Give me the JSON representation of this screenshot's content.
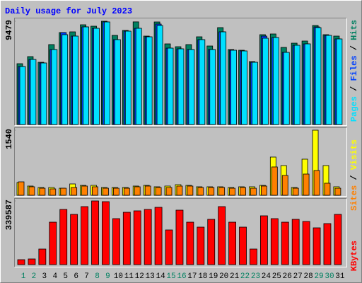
{
  "chart_data": [
    {
      "type": "bar",
      "title": "Daily usage for July 2023",
      "ylim": [
        0,
        9479
      ],
      "yticks": [
        9479
      ],
      "legend_separator": " / ",
      "series": [
        {
          "name": "Hits",
          "color": "#008060",
          "values": [
            5583,
            6232,
            5713,
            7336,
            8440,
            8505,
            9154,
            9024,
            9479,
            8180,
            8635,
            9420,
            8115,
            9413,
            7401,
            7141,
            7336,
            8050,
            7206,
            8894,
            6882,
            6817,
            5778,
            8245,
            8310,
            7076,
            7466,
            7661,
            9089,
            8245,
            8115
          ]
        },
        {
          "name": "Files",
          "color": "#0040ff",
          "values": [
            5324,
            5973,
            5648,
            6882,
            8440,
            8115,
            8959,
            8829,
            9413,
            7790,
            8569,
            8829,
            8050,
            9219,
            7011,
            6946,
            6882,
            7790,
            6882,
            8505,
            6817,
            6752,
            5713,
            8115,
            7985,
            6622,
            7271,
            7401,
            8959,
            8180,
            7855
          ]
        },
        {
          "name": "Pages",
          "color": "#00e0ff",
          "values": [
            5324,
            5973,
            5648,
            6882,
            8245,
            8115,
            8959,
            8829,
            9413,
            7790,
            8569,
            8829,
            8050,
            9089,
            7011,
            6946,
            6882,
            7790,
            6882,
            8505,
            6817,
            6752,
            5713,
            7920,
            7985,
            6622,
            7271,
            7401,
            8894,
            8180,
            7855
          ]
        }
      ]
    },
    {
      "type": "bar",
      "ylim": [
        0,
        1540
      ],
      "yticks": [
        1540
      ],
      "legend_separator": " / ",
      "series": [
        {
          "name": "Visits",
          "color": "#ffff00",
          "values": [
            301,
            218,
            184,
            184,
            167,
            268,
            234,
            234,
            184,
            184,
            184,
            218,
            234,
            201,
            218,
            251,
            234,
            201,
            201,
            201,
            184,
            201,
            201,
            234,
            904,
            703,
            184,
            854,
            1540,
            703,
            201
          ]
        },
        {
          "name": "Sites",
          "color": "#ff8000",
          "values": [
            318,
            201,
            167,
            151,
            167,
            184,
            218,
            201,
            167,
            167,
            167,
            201,
            218,
            184,
            184,
            218,
            218,
            184,
            184,
            184,
            167,
            184,
            167,
            218,
            670,
            469,
            167,
            502,
            586,
            285,
            167
          ]
        }
      ]
    },
    {
      "type": "bar",
      "ylim": [
        0,
        339587
      ],
      "yticks": [
        339587
      ],
      "categories": [
        "1",
        "2",
        "3",
        "4",
        "5",
        "6",
        "7",
        "8",
        "9",
        "10",
        "11",
        "12",
        "13",
        "14",
        "15",
        "16",
        "17",
        "18",
        "19",
        "20",
        "21",
        "22",
        "23",
        "24",
        "25",
        "26",
        "27",
        "28",
        "29",
        "30",
        "31"
      ],
      "category_colors": [
        "#008060",
        "#008060",
        "#000000",
        "#000000",
        "#000000",
        "#000000",
        "#000000",
        "#008060",
        "#008060",
        "#000000",
        "#000000",
        "#000000",
        "#000000",
        "#000000",
        "#008060",
        "#008060",
        "#000000",
        "#000000",
        "#000000",
        "#000000",
        "#000000",
        "#008060",
        "#008060",
        "#000000",
        "#000000",
        "#000000",
        "#000000",
        "#000000",
        "#008060",
        "#008060",
        "#000000"
      ],
      "series": [
        {
          "name": "KBytes",
          "color": "#ff0000",
          "values": [
            26411,
            30184,
            83006,
            226380,
            294294,
            267883,
            309386,
            339587,
            335797,
            245245,
            279202,
            286748,
            294294,
            305613,
            184877,
            290521,
            226380,
            199969,
            241472,
            309386,
            226380,
            199969,
            83006,
            260337,
            245245,
            226380,
            241472,
            230153,
            196196,
            218834,
            267883
          ]
        }
      ]
    }
  ]
}
